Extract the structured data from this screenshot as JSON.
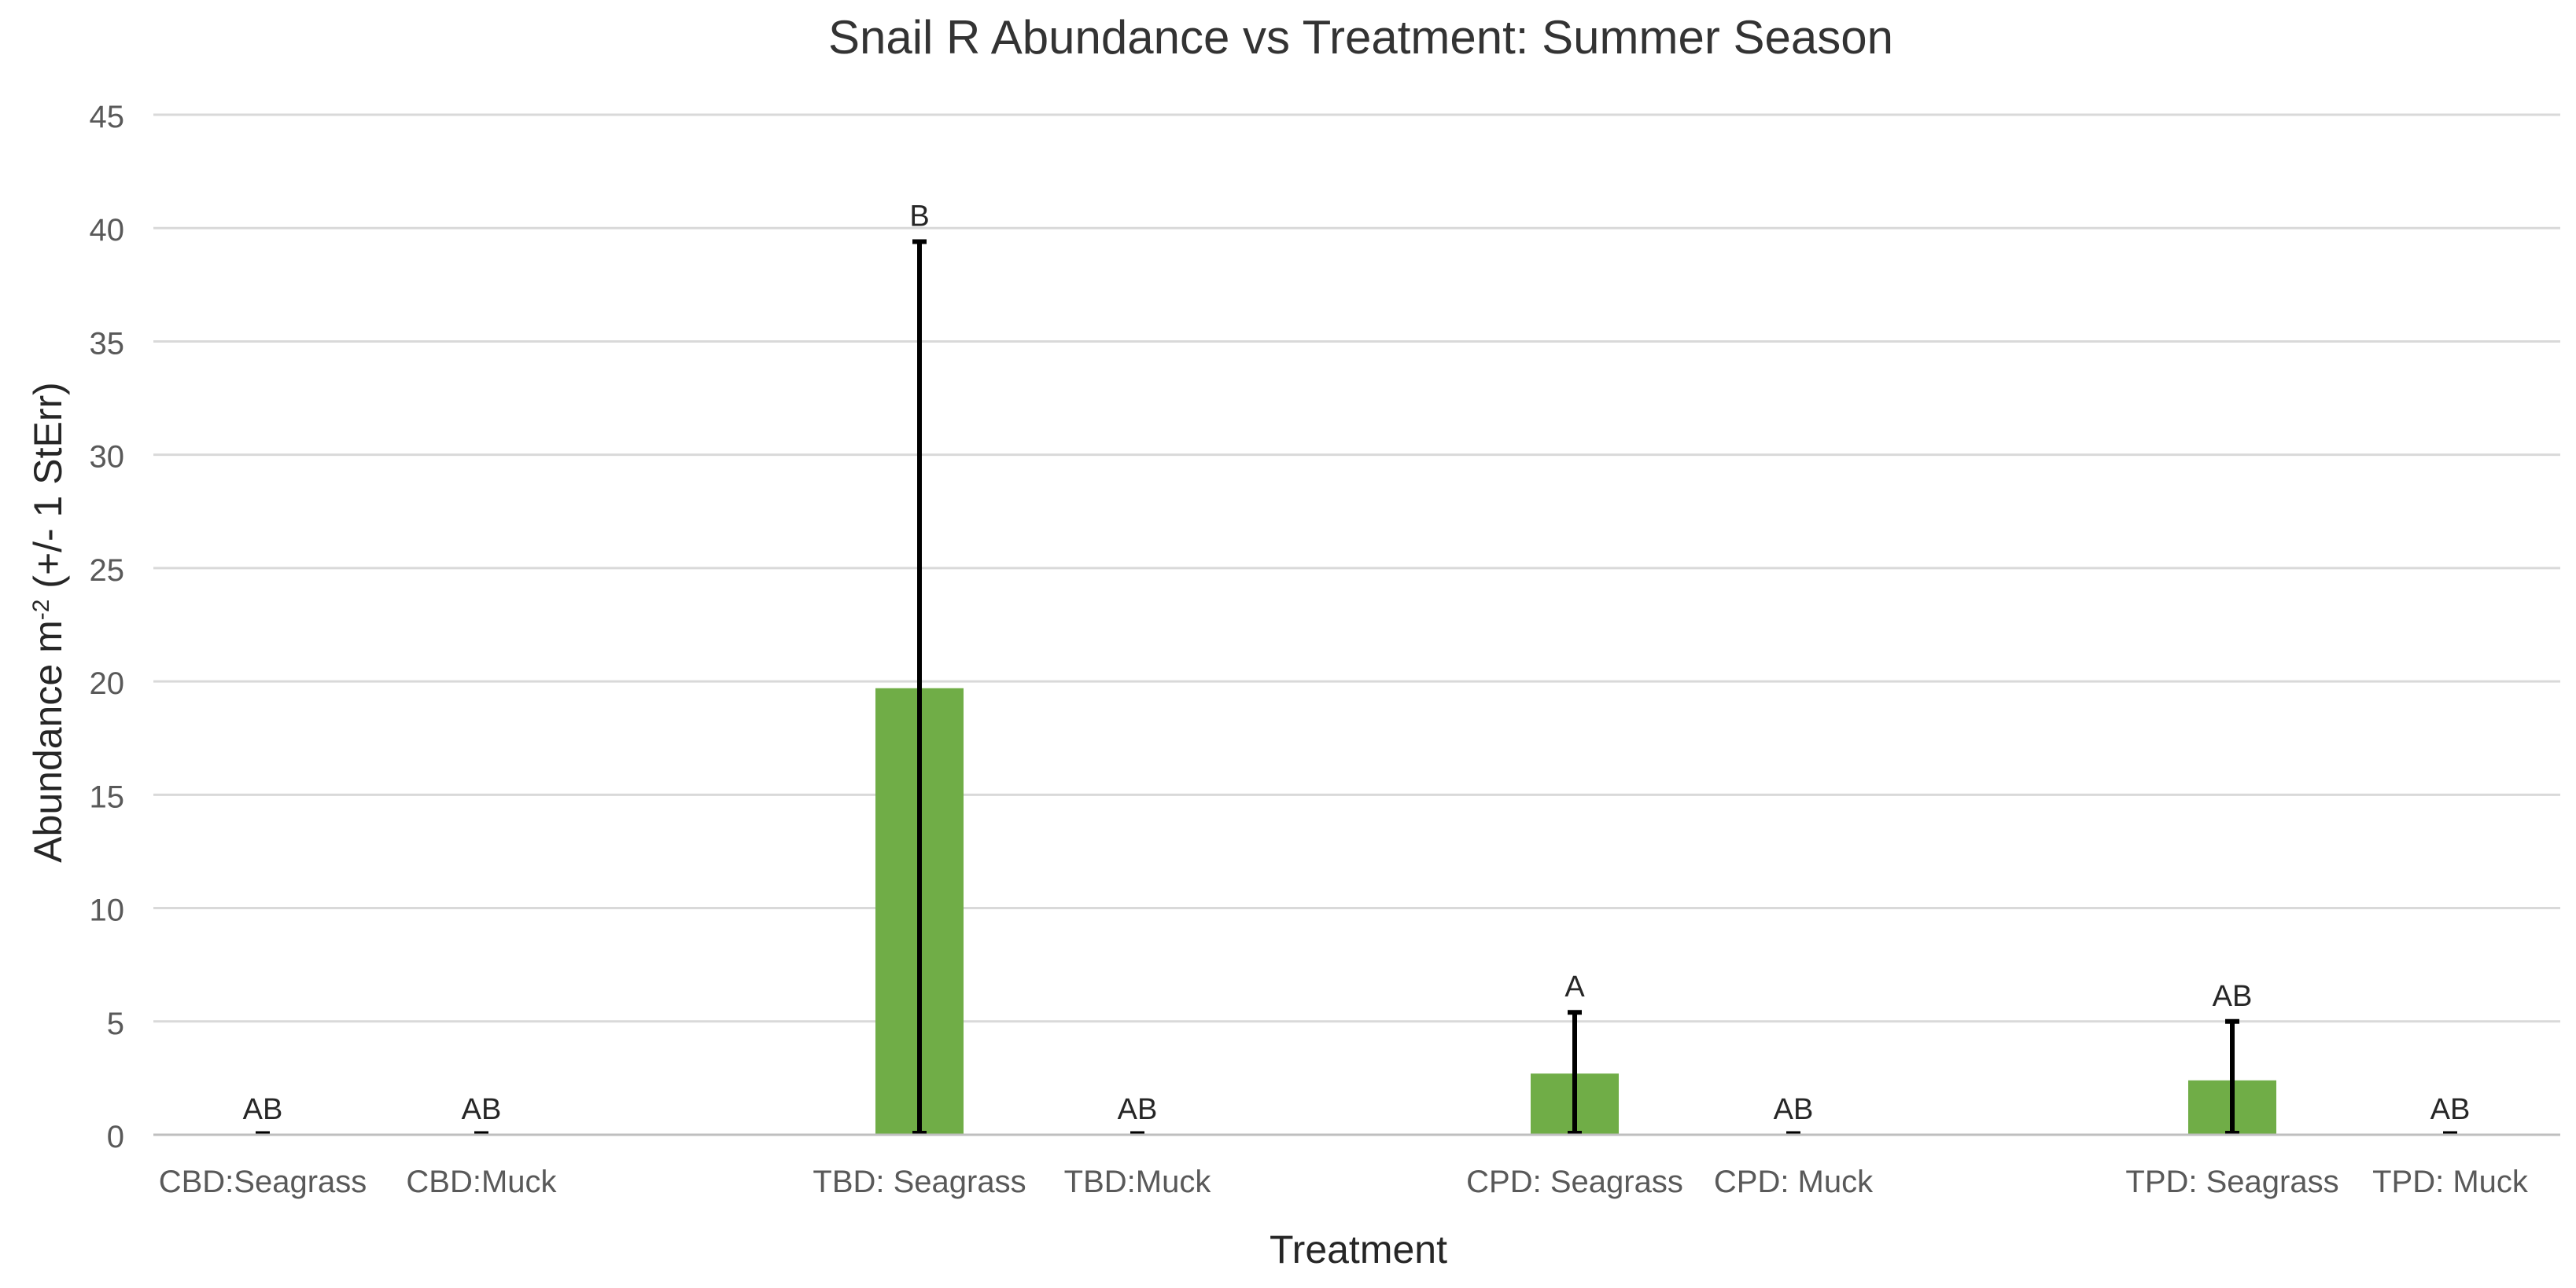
{
  "chart_data": {
    "type": "bar",
    "title": "Snail R Abundance vs Treatment: Summer Season",
    "xlabel": "Treatment",
    "ylabel_main": "Abundance m",
    "ylabel_sup": "-2",
    "ylabel_tail": " (+/- 1 StErr)",
    "ylim": [
      0,
      45
    ],
    "yticks": [
      0,
      5,
      10,
      15,
      20,
      25,
      30,
      35,
      40,
      45
    ],
    "grid": true,
    "legend": "none",
    "bar_color": "#70AD47",
    "errorbar_color": "#000000",
    "gridline_color": "#D9D9D9",
    "categories": [
      "CBD:Seagrass",
      "CBD:Muck",
      "TBD: Seagrass",
      "TBD:Muck",
      "CPD: Seagrass",
      "CPD: Muck",
      "TPD: Seagrass",
      "TPD: Muck"
    ],
    "values": [
      0,
      0,
      19.7,
      0,
      2.7,
      0,
      2.4,
      0
    ],
    "errors": [
      0,
      0,
      19.7,
      0,
      2.7,
      0,
      2.6,
      0
    ],
    "letters": [
      "AB",
      "AB",
      "B",
      "AB",
      "A",
      "AB",
      "AB",
      "AB"
    ]
  }
}
